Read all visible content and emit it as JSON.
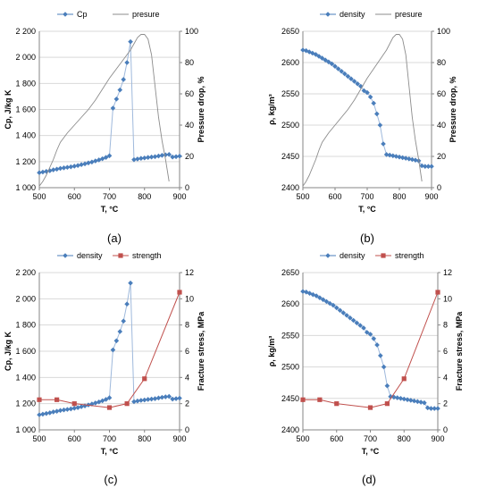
{
  "chart_data": [
    {
      "type": "line",
      "panel_label": "(a)",
      "xlabel": "T, °C",
      "ylabel": "Cp, J/kg K",
      "y2label": "Pressure drop, %",
      "xlim": [
        500,
        900
      ],
      "ylim": [
        1000,
        2200
      ],
      "y2lim": [
        0,
        100
      ],
      "xticks": [
        "500",
        "600",
        "700",
        "800",
        "900"
      ],
      "yticks": [
        "1 000",
        "1 200",
        "1 400",
        "1 600",
        "1 800",
        "2 000",
        "2 200"
      ],
      "y2ticks": [
        "0",
        "20",
        "40",
        "60",
        "80",
        "100"
      ],
      "legend_position": "top",
      "series": [
        {
          "name": "Cp",
          "axis": "left",
          "marker": "diamond",
          "color": "#4a7ebb",
          "x": [
            500,
            510,
            520,
            530,
            540,
            550,
            560,
            570,
            580,
            590,
            600,
            610,
            620,
            630,
            640,
            650,
            660,
            670,
            680,
            690,
            700,
            710,
            720,
            730,
            740,
            750,
            760,
            770,
            780,
            790,
            800,
            810,
            820,
            830,
            840,
            850,
            860,
            870,
            880,
            890,
            900
          ],
          "y": [
            1115,
            1120,
            1125,
            1130,
            1137,
            1142,
            1148,
            1152,
            1156,
            1160,
            1165,
            1170,
            1177,
            1183,
            1190,
            1197,
            1205,
            1213,
            1222,
            1232,
            1245,
            1610,
            1680,
            1750,
            1830,
            1960,
            2120,
            1215,
            1220,
            1225,
            1228,
            1232,
            1235,
            1238,
            1243,
            1248,
            1252,
            1255,
            1235,
            1238,
            1242
          ]
        },
        {
          "name": "presure",
          "axis": "right",
          "marker": "none",
          "color": "#8c8c8c",
          "x": [
            500,
            510,
            520,
            530,
            540,
            550,
            560,
            580,
            600,
            620,
            640,
            660,
            680,
            700,
            720,
            740,
            760,
            770,
            780,
            790,
            800,
            810,
            820,
            830,
            840,
            850,
            860,
            870
          ],
          "y": [
            1,
            4,
            8,
            13,
            18,
            24,
            29,
            35,
            40,
            45,
            50,
            56,
            63,
            70,
            76,
            82,
            88,
            92,
            96,
            98,
            98,
            95,
            85,
            65,
            45,
            30,
            18,
            4
          ]
        }
      ]
    },
    {
      "type": "line",
      "panel_label": "(b)",
      "xlabel": "T, °C",
      "ylabel": "ρ, kg/m³",
      "y2label": "Pressure drop, %",
      "xlim": [
        500,
        900
      ],
      "ylim": [
        2400,
        2650
      ],
      "y2lim": [
        0,
        100
      ],
      "xticks": [
        "500",
        "600",
        "700",
        "800",
        "900"
      ],
      "yticks": [
        "2400",
        "2450",
        "2500",
        "2550",
        "2600",
        "2650"
      ],
      "y2ticks": [
        "0",
        "20",
        "40",
        "60",
        "80",
        "100"
      ],
      "legend_position": "top",
      "series": [
        {
          "name": "density",
          "axis": "left",
          "marker": "diamond",
          "color": "#4a7ebb",
          "x": [
            500,
            510,
            520,
            530,
            540,
            550,
            560,
            570,
            580,
            590,
            600,
            610,
            620,
            630,
            640,
            650,
            660,
            670,
            680,
            690,
            700,
            710,
            720,
            730,
            740,
            750,
            760,
            770,
            780,
            790,
            800,
            810,
            820,
            830,
            840,
            850,
            860,
            870,
            880,
            890,
            900
          ],
          "y": [
            2620,
            2619,
            2617,
            2615,
            2613,
            2610,
            2607,
            2604,
            2601,
            2598,
            2594,
            2590,
            2586,
            2582,
            2578,
            2574,
            2570,
            2566,
            2562,
            2555,
            2552,
            2545,
            2535,
            2518,
            2500,
            2470,
            2453,
            2452,
            2451,
            2450,
            2449,
            2448,
            2447,
            2446,
            2445,
            2444,
            2443,
            2435,
            2434,
            2434,
            2434
          ]
        },
        {
          "name": "presure",
          "axis": "right",
          "marker": "none",
          "color": "#8c8c8c",
          "x": [
            500,
            510,
            520,
            530,
            540,
            550,
            560,
            580,
            600,
            620,
            640,
            660,
            680,
            700,
            720,
            740,
            760,
            770,
            780,
            790,
            800,
            810,
            820,
            830,
            840,
            850,
            860,
            870
          ],
          "y": [
            1,
            4,
            8,
            13,
            18,
            24,
            29,
            35,
            40,
            45,
            50,
            56,
            63,
            70,
            76,
            82,
            88,
            92,
            96,
            98,
            98,
            95,
            85,
            65,
            45,
            30,
            18,
            4
          ]
        }
      ]
    },
    {
      "type": "line",
      "panel_label": "(c)",
      "xlabel": "T, °C",
      "ylabel": "Cp, J/kg K",
      "y2label": "Fracture stress, MPa",
      "xlim": [
        500,
        900
      ],
      "ylim": [
        1000,
        2200
      ],
      "y2lim": [
        0,
        12
      ],
      "xticks": [
        "500",
        "600",
        "700",
        "800",
        "900"
      ],
      "yticks": [
        "1 000",
        "1 200",
        "1 400",
        "1 600",
        "1 800",
        "2 000",
        "2 200"
      ],
      "y2ticks": [
        "0",
        "2",
        "4",
        "6",
        "8",
        "10",
        "12"
      ],
      "legend_position": "top",
      "series": [
        {
          "name": "density",
          "axis": "left",
          "marker": "diamond",
          "color": "#4a7ebb",
          "x": [
            500,
            510,
            520,
            530,
            540,
            550,
            560,
            570,
            580,
            590,
            600,
            610,
            620,
            630,
            640,
            650,
            660,
            670,
            680,
            690,
            700,
            710,
            720,
            730,
            740,
            750,
            760,
            770,
            780,
            790,
            800,
            810,
            820,
            830,
            840,
            850,
            860,
            870,
            880,
            890,
            900
          ],
          "y": [
            1115,
            1120,
            1125,
            1130,
            1137,
            1142,
            1148,
            1152,
            1156,
            1160,
            1165,
            1170,
            1177,
            1183,
            1190,
            1197,
            1205,
            1213,
            1222,
            1232,
            1245,
            1610,
            1680,
            1750,
            1830,
            1960,
            2120,
            1215,
            1220,
            1225,
            1228,
            1232,
            1235,
            1238,
            1243,
            1248,
            1252,
            1255,
            1235,
            1238,
            1242
          ]
        },
        {
          "name": "strength",
          "axis": "right",
          "marker": "square",
          "color": "#c0504d",
          "x": [
            500,
            550,
            600,
            700,
            750,
            800,
            900
          ],
          "y": [
            2.3,
            2.3,
            2.0,
            1.7,
            2.0,
            3.9,
            10.5
          ]
        }
      ]
    },
    {
      "type": "line",
      "panel_label": "(d)",
      "xlabel": "T, °C",
      "ylabel": "ρ, kg/m³",
      "y2label": "Fracture stress, MPa",
      "xlim": [
        500,
        900
      ],
      "ylim": [
        2400,
        2650
      ],
      "y2lim": [
        0,
        12
      ],
      "xticks": [
        "500",
        "600",
        "700",
        "800",
        "900"
      ],
      "yticks": [
        "2400",
        "2450",
        "2500",
        "2550",
        "2600",
        "2650"
      ],
      "y2ticks": [
        "0",
        "2",
        "4",
        "6",
        "8",
        "10",
        "12"
      ],
      "legend_position": "top",
      "series": [
        {
          "name": "density",
          "axis": "left",
          "marker": "diamond",
          "color": "#4a7ebb",
          "x": [
            500,
            510,
            520,
            530,
            540,
            550,
            560,
            570,
            580,
            590,
            600,
            610,
            620,
            630,
            640,
            650,
            660,
            670,
            680,
            690,
            700,
            710,
            720,
            730,
            740,
            750,
            760,
            770,
            780,
            790,
            800,
            810,
            820,
            830,
            840,
            850,
            860,
            870,
            880,
            890,
            900
          ],
          "y": [
            2620,
            2619,
            2617,
            2615,
            2613,
            2610,
            2607,
            2604,
            2601,
            2598,
            2594,
            2590,
            2586,
            2582,
            2578,
            2574,
            2570,
            2566,
            2562,
            2555,
            2552,
            2545,
            2535,
            2518,
            2500,
            2470,
            2453,
            2452,
            2451,
            2450,
            2449,
            2448,
            2447,
            2446,
            2445,
            2444,
            2443,
            2435,
            2434,
            2434,
            2434
          ]
        },
        {
          "name": "strength",
          "axis": "right",
          "marker": "square",
          "color": "#c0504d",
          "x": [
            500,
            550,
            600,
            700,
            750,
            800,
            900
          ],
          "y": [
            2.3,
            2.3,
            2.0,
            1.7,
            2.0,
            3.9,
            10.5
          ]
        }
      ]
    }
  ]
}
